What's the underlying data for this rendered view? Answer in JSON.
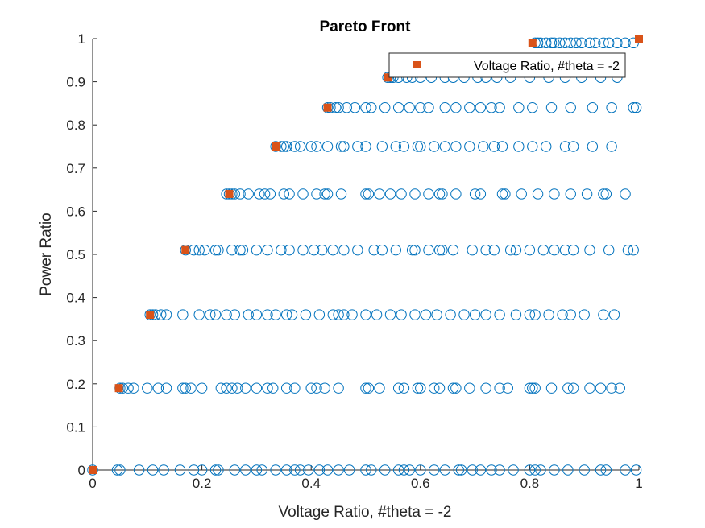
{
  "chart_data": {
    "type": "scatter",
    "title": "Pareto Front",
    "xlabel": "Voltage Ratio, #theta = -2",
    "ylabel": "Power Ratio",
    "xlim": [
      0,
      1
    ],
    "ylim": [
      0,
      1
    ],
    "xticks": [
      "0",
      "0.2",
      "0.4",
      "0.6",
      "0.8",
      "1"
    ],
    "yticks": [
      "0",
      "0.1",
      "0.2",
      "0.3",
      "0.4",
      "0.5",
      "0.6",
      "0.7",
      "0.8",
      "0.9",
      "1"
    ],
    "legend": {
      "label": "Voltage Ratio, #theta = -2",
      "placement": "top-right"
    },
    "colors": {
      "open_circles": "#0072BD",
      "pareto": "#D95319",
      "axes": "#262626"
    },
    "series": [
      {
        "marker": "open-circle",
        "color": "#0072BD",
        "rows": [
          {
            "y": 0,
            "x": [
              0.0,
              0.045,
              0.05,
              0.085,
              0.11,
              0.13,
              0.16,
              0.185,
              0.2,
              0.225,
              0.23,
              0.26,
              0.28,
              0.3,
              0.31,
              0.335,
              0.355,
              0.37,
              0.38,
              0.395,
              0.415,
              0.43,
              0.45,
              0.47,
              0.5,
              0.51,
              0.535,
              0.56,
              0.57,
              0.58,
              0.6,
              0.625,
              0.645,
              0.67,
              0.675,
              0.695,
              0.71,
              0.73,
              0.745,
              0.77,
              0.8,
              0.81,
              0.82,
              0.845,
              0.87,
              0.9,
              0.93,
              0.94,
              0.975,
              0.995
            ]
          },
          {
            "y": 0.19,
            "x": [
              0.05,
              0.055,
              0.065,
              0.075,
              0.1,
              0.12,
              0.135,
              0.165,
              0.17,
              0.18,
              0.2,
              0.235,
              0.245,
              0.255,
              0.265,
              0.28,
              0.3,
              0.32,
              0.33,
              0.355,
              0.37,
              0.4,
              0.41,
              0.425,
              0.45,
              0.5,
              0.505,
              0.525,
              0.56,
              0.57,
              0.595,
              0.6,
              0.625,
              0.635,
              0.66,
              0.665,
              0.69,
              0.72,
              0.745,
              0.76,
              0.8,
              0.805,
              0.81,
              0.84,
              0.87,
              0.88,
              0.91,
              0.93,
              0.95,
              0.965
            ]
          },
          {
            "y": 0.36,
            "x": [
              0.105,
              0.11,
              0.115,
              0.125,
              0.135,
              0.165,
              0.195,
              0.215,
              0.225,
              0.245,
              0.26,
              0.285,
              0.3,
              0.32,
              0.335,
              0.355,
              0.365,
              0.39,
              0.415,
              0.44,
              0.45,
              0.46,
              0.475,
              0.5,
              0.52,
              0.545,
              0.565,
              0.59,
              0.61,
              0.63,
              0.655,
              0.68,
              0.7,
              0.72,
              0.745,
              0.775,
              0.8,
              0.81,
              0.835,
              0.86,
              0.875,
              0.9,
              0.935,
              0.955
            ]
          },
          {
            "y": 0.51,
            "x": [
              0.17,
              0.185,
              0.195,
              0.205,
              0.225,
              0.23,
              0.255,
              0.27,
              0.275,
              0.3,
              0.32,
              0.345,
              0.36,
              0.385,
              0.405,
              0.42,
              0.44,
              0.46,
              0.485,
              0.515,
              0.53,
              0.555,
              0.585,
              0.59,
              0.615,
              0.635,
              0.64,
              0.66,
              0.695,
              0.72,
              0.735,
              0.765,
              0.775,
              0.8,
              0.825,
              0.845,
              0.865,
              0.88,
              0.91,
              0.945,
              0.98,
              0.99
            ]
          },
          {
            "y": 0.64,
            "x": [
              0.245,
              0.25,
              0.255,
              0.26,
              0.27,
              0.285,
              0.305,
              0.315,
              0.325,
              0.35,
              0.36,
              0.385,
              0.41,
              0.425,
              0.43,
              0.455,
              0.5,
              0.505,
              0.525,
              0.545,
              0.565,
              0.59,
              0.615,
              0.635,
              0.64,
              0.665,
              0.7,
              0.71,
              0.75,
              0.755,
              0.785,
              0.815,
              0.845,
              0.875,
              0.905,
              0.935,
              0.94,
              0.975
            ]
          },
          {
            "y": 0.75,
            "x": [
              0.335,
              0.345,
              0.35,
              0.355,
              0.37,
              0.38,
              0.4,
              0.41,
              0.43,
              0.455,
              0.46,
              0.485,
              0.5,
              0.53,
              0.555,
              0.57,
              0.595,
              0.6,
              0.625,
              0.645,
              0.665,
              0.69,
              0.715,
              0.735,
              0.75,
              0.78,
              0.805,
              0.83,
              0.865,
              0.88,
              0.915,
              0.95
            ]
          },
          {
            "y": 0.84,
            "x": [
              0.43,
              0.435,
              0.445,
              0.45,
              0.465,
              0.48,
              0.5,
              0.51,
              0.535,
              0.56,
              0.58,
              0.6,
              0.615,
              0.645,
              0.665,
              0.69,
              0.71,
              0.73,
              0.745,
              0.78,
              0.805,
              0.84,
              0.875,
              0.915,
              0.95,
              0.99,
              0.995
            ]
          },
          {
            "y": 0.91,
            "x": [
              0.54,
              0.545,
              0.55,
              0.56,
              0.575,
              0.585,
              0.6,
              0.62,
              0.645,
              0.66,
              0.68,
              0.705,
              0.72,
              0.74,
              0.765,
              0.8,
              0.835,
              0.865,
              0.895,
              0.93,
              0.96
            ]
          },
          {
            "y": 0.93,
            "x": [
              0.66,
              0.67,
              0.68,
              0.695,
              0.71,
              0.72,
              0.74,
              0.76,
              0.775,
              0.79,
              0.805,
              0.82,
              0.835,
              0.85,
              0.865,
              0.88
            ]
          },
          {
            "y": 0.99,
            "x": [
              0.81,
              0.815,
              0.82,
              0.83,
              0.84,
              0.845,
              0.855,
              0.865,
              0.875,
              0.885,
              0.895,
              0.91,
              0.92,
              0.935,
              0.945,
              0.96,
              0.975,
              0.99
            ]
          }
        ]
      },
      {
        "name": "Voltage Ratio, #theta = -2",
        "marker": "filled-square",
        "color": "#D95319",
        "x": [
          0.0,
          0.048,
          0.105,
          0.17,
          0.25,
          0.335,
          0.43,
          0.54,
          0.805,
          1.0
        ],
        "y": [
          0.0,
          0.19,
          0.36,
          0.51,
          0.64,
          0.75,
          0.84,
          0.91,
          0.99,
          1.0
        ]
      }
    ]
  }
}
